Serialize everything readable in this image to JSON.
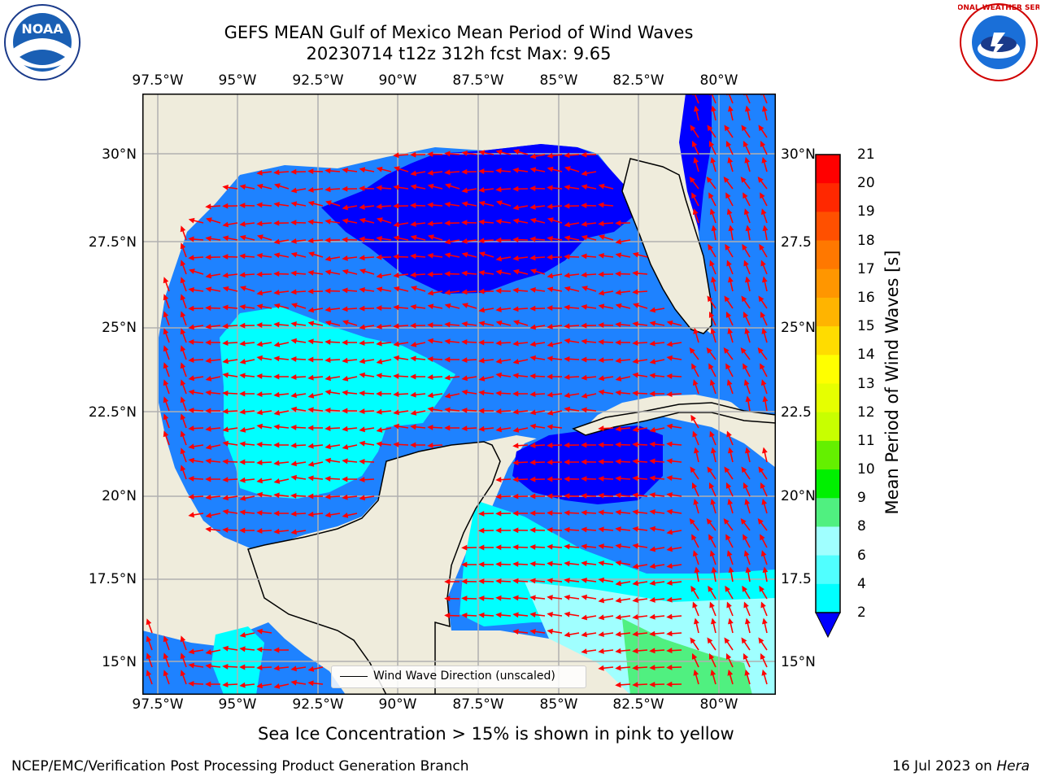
{
  "header": {
    "title_line1": "GEFS MEAN Gulf of Mexico Mean Period of Wind Waves",
    "title_line2": "20230714 t12z 312h fcst   Max: 9.65"
  },
  "logos": {
    "left": "NOAA",
    "right": "NATIONAL WEATHER SERVICE"
  },
  "axes": {
    "lon_labels": [
      "97.5°W",
      "95°W",
      "92.5°W",
      "90°W",
      "87.5°W",
      "85°W",
      "82.5°W",
      "80°W"
    ],
    "lat_left": [
      "30°N",
      "27.5°N",
      "25°N",
      "22.5°N",
      "20°N",
      "17.5°N",
      "15°N"
    ],
    "lat_right": [
      "30°N",
      "27.5",
      "25°N",
      "22.5",
      "20°N",
      "17.5",
      "15°N"
    ]
  },
  "colorbar": {
    "label": "Mean Period of Wind Waves [s]",
    "ticks": [
      "21",
      "20",
      "19",
      "18",
      "17",
      "16",
      "15",
      "14",
      "13",
      "12",
      "11",
      "10",
      "9",
      "8",
      "6",
      "4",
      "2"
    ],
    "colors": [
      "#ff0000",
      "#ff2800",
      "#ff5000",
      "#ff7800",
      "#ff9600",
      "#ffb400",
      "#ffdc00",
      "#ffff00",
      "#e6ff00",
      "#c8ff00",
      "#64f000",
      "#00f000",
      "#50f080",
      "#a0ffff",
      "#50ffff",
      "#00ffff",
      "#0080ff"
    ],
    "extend_color": "#0000ff"
  },
  "legend": {
    "text": "Wind Wave Direction (unscaled)"
  },
  "note": "Sea Ice Concentration > 15% is shown in pink to yellow",
  "footer": {
    "left": "NCEP/EMC/Verification Post Processing Product Generation Branch",
    "right_prefix": "16 Jul 2023 on ",
    "right_host": "Hera"
  },
  "colors": {
    "land": "#efecdc",
    "grid": "#b0b0b0",
    "arrow": "#ff0000",
    "deep": "#0000ff",
    "mid": "#1e82ff",
    "light": "#00ffff",
    "pale": "#a0ffff",
    "green": "#50f080"
  }
}
